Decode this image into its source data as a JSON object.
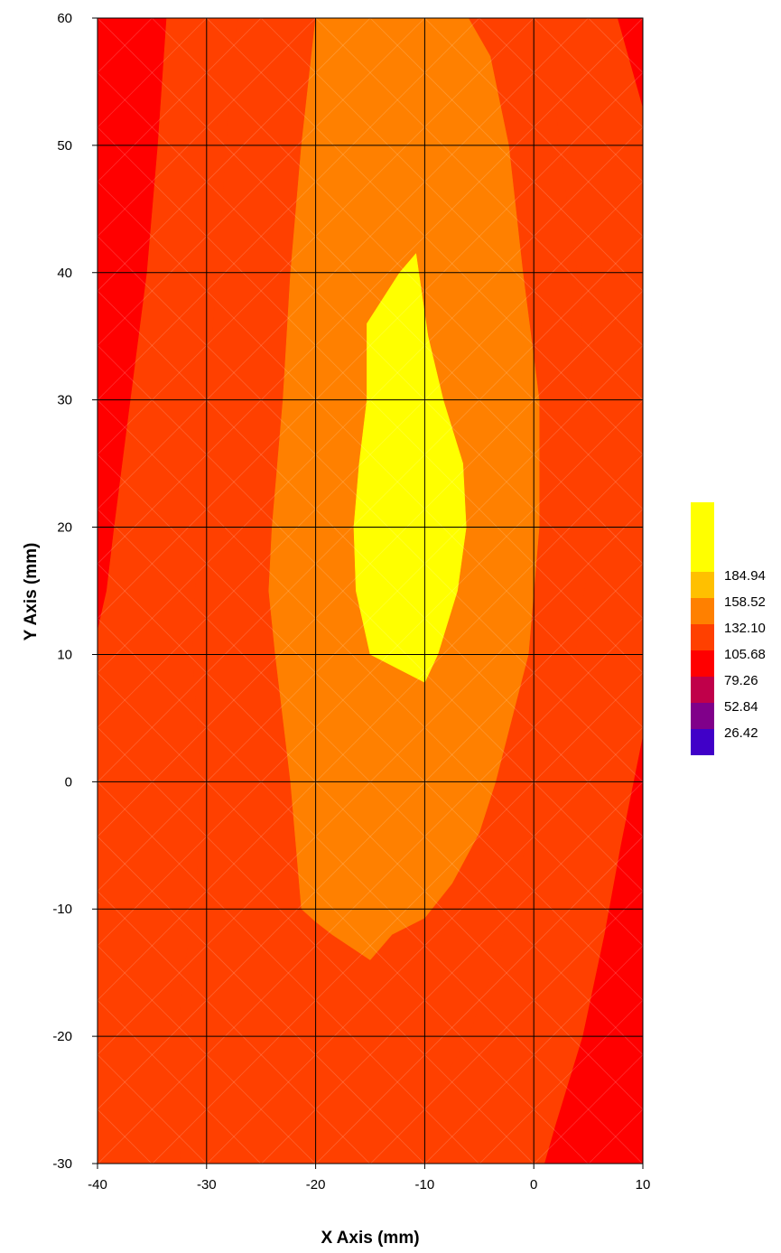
{
  "chart_data": {
    "type": "contour",
    "xlabel": "X Axis (mm)",
    "ylabel": "Y Axis (mm)",
    "xlim": [
      -40,
      10
    ],
    "ylim": [
      -30,
      60
    ],
    "xticks": [
      "-40",
      "-30",
      "-20",
      "-10",
      "0",
      "10"
    ],
    "yticks": [
      "60",
      "50",
      "40",
      "30",
      "20",
      "10",
      "0",
      "-10",
      "-20",
      "-30"
    ],
    "grid": true,
    "legend_position": "right",
    "levels": [
      26.42,
      52.84,
      79.26,
      105.68,
      132.1,
      158.52,
      184.94
    ],
    "legend_labels": [
      "184.94",
      "158.52",
      "132.10",
      "105.68",
      "79.26",
      "52.84",
      "26.42"
    ],
    "level_colors": [
      "#ffff00",
      "#ffc000",
      "#ff8000",
      "#ff4000",
      "#ff0000",
      "#c0004a",
      "#80008a",
      "#4000c8"
    ],
    "contours": [
      {
        "level": 79.26,
        "color": "#c0004a",
        "points": [
          [
            10,
            -20.5
          ],
          [
            6,
            -27.5
          ],
          [
            5.5,
            -30
          ],
          [
            10,
            -30
          ]
        ]
      },
      {
        "level": 105.68,
        "color": "#ff0000",
        "bands": [
          [
            [
              -40,
              60
            ],
            [
              -33.7,
              60
            ],
            [
              -34.5,
              50
            ],
            [
              -35.5,
              40
            ],
            [
              -37,
              30
            ],
            [
              -38.5,
              20
            ],
            [
              -39.2,
              15
            ],
            [
              -40,
              12
            ]
          ],
          [
            [
              10,
              53
            ],
            [
              7.7,
              60
            ],
            [
              10,
              60
            ]
          ],
          [
            [
              10,
              3.5
            ],
            [
              8,
              -5
            ],
            [
              6.5,
              -12
            ],
            [
              4.5,
              -20
            ],
            [
              2,
              -27
            ],
            [
              1,
              -30
            ],
            [
              10,
              -30
            ]
          ]
        ]
      },
      {
        "level": 132.1,
        "color": "#ff4000",
        "points": [
          [
            -27.2,
            60
          ],
          [
            -28.2,
            50
          ],
          [
            -29,
            40
          ],
          [
            -30,
            30
          ],
          [
            -30.8,
            20
          ],
          [
            -31.3,
            10
          ],
          [
            -30.5,
            0
          ],
          [
            -31,
            -10
          ],
          [
            -32.2,
            -15
          ],
          [
            -32.6,
            -20
          ],
          [
            -32.4,
            -30
          ],
          [
            -11.8,
            -30
          ],
          [
            -10,
            -26
          ],
          [
            -6,
            -20
          ],
          [
            -3,
            -13
          ],
          [
            -1,
            -6
          ],
          [
            0.8,
            0
          ],
          [
            2.5,
            5
          ],
          [
            3.8,
            10
          ],
          [
            5.5,
            20
          ],
          [
            5.2,
            25
          ],
          [
            4.8,
            30
          ],
          [
            4,
            40
          ],
          [
            3,
            46
          ],
          [
            1.7,
            55
          ],
          [
            0.8,
            60
          ]
        ]
      },
      {
        "level": 158.52,
        "color": "#ff8000",
        "points": [
          [
            -20,
            60
          ],
          [
            -21.3,
            50
          ],
          [
            -22.3,
            40
          ],
          [
            -23,
            30
          ],
          [
            -24,
            20
          ],
          [
            -24.3,
            15
          ],
          [
            -23.7,
            10
          ],
          [
            -22.3,
            0
          ],
          [
            -21.3,
            -10
          ],
          [
            -20,
            -11
          ],
          [
            -18.5,
            -12
          ],
          [
            -15,
            -14
          ],
          [
            -13,
            -12
          ],
          [
            -10,
            -10.7
          ],
          [
            -7.5,
            -8
          ],
          [
            -5,
            -4
          ],
          [
            -3.5,
            0
          ],
          [
            -2,
            5
          ],
          [
            -0.5,
            10
          ],
          [
            0.5,
            20
          ],
          [
            0.5,
            30
          ],
          [
            -1,
            40
          ],
          [
            -2.3,
            50
          ],
          [
            -4,
            57
          ],
          [
            -6,
            60
          ]
        ]
      },
      {
        "level": 184.94,
        "color": "#ffff00",
        "points": [
          [
            -12.3,
            40
          ],
          [
            -10.8,
            41.5
          ],
          [
            -9.7,
            35
          ],
          [
            -8.3,
            30
          ],
          [
            -6.5,
            25
          ],
          [
            -6.2,
            20
          ],
          [
            -7,
            15
          ],
          [
            -8.8,
            10
          ],
          [
            -10,
            7.8
          ],
          [
            -15,
            10
          ],
          [
            -16.3,
            15
          ],
          [
            -16.5,
            20
          ],
          [
            -16,
            25
          ],
          [
            -15.3,
            30
          ],
          [
            -15.3,
            36
          ]
        ]
      }
    ]
  }
}
